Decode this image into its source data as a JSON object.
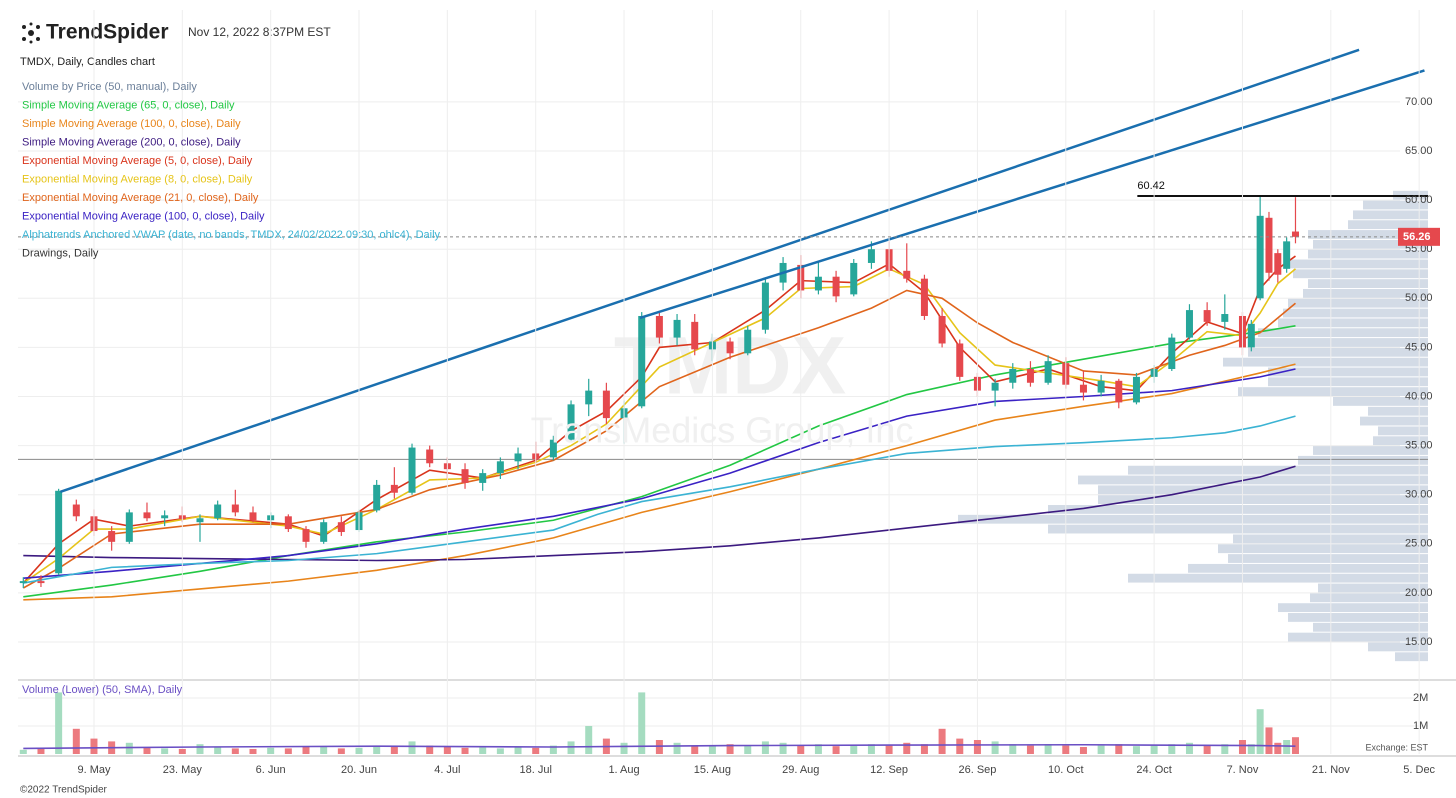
{
  "header": {
    "logo": "TrendSpider",
    "timestamp": "Nov 12, 2022 8:37PM EST",
    "chart_title": "TMDX, Daily, Candles chart"
  },
  "chart_data": {
    "type": "candlestick",
    "watermark": {
      "symbol": "TMDX",
      "company": "TransMedics Group, Inc"
    },
    "up_color": "#26a69a",
    "down_color": "#e5484d",
    "grid": true,
    "xlim": [
      -0.6,
      159
    ],
    "ylim": [
      11.13,
      79.36
    ],
    "xticks": [
      {
        "value": 8,
        "label": "9. May"
      },
      {
        "value": 18,
        "label": "23. May"
      },
      {
        "value": 28,
        "label": "6. Jun"
      },
      {
        "value": 38,
        "label": "20. Jun"
      },
      {
        "value": 48,
        "label": "4. Jul"
      },
      {
        "value": 58,
        "label": "18. Jul"
      },
      {
        "value": 68,
        "label": "1. Aug"
      },
      {
        "value": 78,
        "label": "15. Aug"
      },
      {
        "value": 88,
        "label": "29. Aug"
      },
      {
        "value": 98,
        "label": "12. Sep"
      },
      {
        "value": 108,
        "label": "26. Sep"
      },
      {
        "value": 118,
        "label": "10. Oct"
      },
      {
        "value": 128,
        "label": "24. Oct"
      },
      {
        "value": 138,
        "label": "7. Nov"
      },
      {
        "value": 148,
        "label": "21. Nov"
      },
      {
        "value": 158,
        "label": "5. Dec"
      }
    ],
    "yticks": [
      {
        "value": 15,
        "label": "15.00"
      },
      {
        "value": 20,
        "label": "20.00"
      },
      {
        "value": 25,
        "label": "25.00"
      },
      {
        "value": 30,
        "label": "30.00"
      },
      {
        "value": 35,
        "label": "35.00"
      },
      {
        "value": 40,
        "label": "40.00"
      },
      {
        "value": 45,
        "label": "45.00"
      },
      {
        "value": 50,
        "label": "50.00"
      },
      {
        "value": 55,
        "label": "55.00"
      },
      {
        "value": 60,
        "label": "60.00"
      },
      {
        "value": 65,
        "label": "65.00"
      },
      {
        "value": 70,
        "label": "70.00"
      }
    ],
    "x": [
      0,
      2,
      4,
      6,
      8,
      10,
      12,
      14,
      16,
      18,
      20,
      22,
      24,
      26,
      28,
      30,
      32,
      34,
      36,
      38,
      40,
      42,
      44,
      46,
      48,
      50,
      52,
      54,
      56,
      58,
      60,
      62,
      64,
      66,
      68,
      70,
      72,
      74,
      76,
      78,
      80,
      82,
      84,
      86,
      88,
      90,
      92,
      94,
      96,
      98,
      100,
      102,
      104,
      106,
      108,
      110,
      112,
      114,
      116,
      118,
      120,
      122,
      124,
      126,
      128,
      130,
      132,
      134,
      136,
      138,
      139,
      140,
      141,
      142,
      143,
      144
    ],
    "ohlc": [
      [
        21,
        21.6,
        20.5,
        21.2
      ],
      [
        21.2,
        21.8,
        20.6,
        21
      ],
      [
        22,
        30.6,
        21.8,
        30.4
      ],
      [
        29,
        29.5,
        27.3,
        27.8
      ],
      [
        27.8,
        28.5,
        25.8,
        26.3
      ],
      [
        26.3,
        26.8,
        24.3,
        25.2
      ],
      [
        25.2,
        28.5,
        25,
        28.2
      ],
      [
        28.2,
        29.2,
        27.3,
        27.6
      ],
      [
        27.6,
        28.4,
        26.8,
        27.9
      ],
      [
        27.9,
        28.8,
        27.2,
        27.5
      ],
      [
        27.2,
        28,
        25.2,
        27.6
      ],
      [
        27.6,
        29.4,
        27.4,
        29
      ],
      [
        29,
        30.5,
        27.8,
        28.2
      ],
      [
        28.2,
        28.8,
        27.2,
        27.4
      ],
      [
        27.4,
        28.2,
        26.6,
        27.9
      ],
      [
        27.8,
        28,
        26.2,
        26.5
      ],
      [
        26.5,
        26.8,
        24.6,
        25.2
      ],
      [
        25.2,
        27.5,
        25,
        27.2
      ],
      [
        27.2,
        27.8,
        25.8,
        26.2
      ],
      [
        26.4,
        28.5,
        26.2,
        28.2
      ],
      [
        28.4,
        31.5,
        28.2,
        31
      ],
      [
        31,
        32.8,
        29.6,
        30.2
      ],
      [
        30.2,
        35.2,
        30,
        34.8
      ],
      [
        34.6,
        35,
        32.8,
        33.2
      ],
      [
        33.2,
        33.8,
        31.5,
        32.6
      ],
      [
        32.6,
        33.2,
        30.6,
        31.2
      ],
      [
        31.2,
        32.6,
        30.4,
        32.2
      ],
      [
        32.2,
        33.8,
        31.6,
        33.4
      ],
      [
        33.4,
        34.8,
        32.6,
        34.2
      ],
      [
        34.2,
        35.4,
        33.2,
        33.6
      ],
      [
        33.8,
        36,
        33.5,
        35.6
      ],
      [
        35.6,
        39.6,
        35.4,
        39.2
      ],
      [
        39.2,
        41.8,
        38,
        40.6
      ],
      [
        40.6,
        41.4,
        37.2,
        37.8
      ],
      [
        37.8,
        39.6,
        35.2,
        38.8
      ],
      [
        39,
        48.6,
        38.8,
        48.2
      ],
      [
        48.2,
        48.6,
        45.4,
        46
      ],
      [
        46,
        48.4,
        45.2,
        47.8
      ],
      [
        47.6,
        48.4,
        44.2,
        44.8
      ],
      [
        44.8,
        46.4,
        43.6,
        45.6
      ],
      [
        45.6,
        46,
        43.8,
        44.4
      ],
      [
        44.4,
        47.2,
        44.2,
        46.8
      ],
      [
        46.8,
        52,
        46.4,
        51.6
      ],
      [
        51.6,
        54.2,
        50.8,
        53.6
      ],
      [
        53.4,
        54.4,
        50,
        50.8
      ],
      [
        50.8,
        53.8,
        50.4,
        52.2
      ],
      [
        52.2,
        52.8,
        49.6,
        50.2
      ],
      [
        50.4,
        54,
        50.2,
        53.6
      ],
      [
        53.6,
        55.8,
        53,
        55
      ],
      [
        55,
        55.8,
        52.2,
        52.8
      ],
      [
        52.8,
        55.6,
        51.6,
        52
      ],
      [
        52,
        52.4,
        47.8,
        48.2
      ],
      [
        48.2,
        49,
        45,
        45.4
      ],
      [
        45.4,
        45.8,
        41.6,
        42
      ],
      [
        42,
        42.4,
        40,
        40.6
      ],
      [
        40.6,
        41.8,
        39,
        41.4
      ],
      [
        41.4,
        43.4,
        40.8,
        42.8
      ],
      [
        42.8,
        43.6,
        41,
        41.4
      ],
      [
        41.4,
        44.2,
        41.2,
        43.6
      ],
      [
        43.4,
        44,
        40.8,
        41.2
      ],
      [
        41.2,
        42.6,
        39.6,
        40.4
      ],
      [
        40.4,
        42.2,
        40,
        41.6
      ],
      [
        41.6,
        41.8,
        38.8,
        39.4
      ],
      [
        39.4,
        42.4,
        39.2,
        42
      ],
      [
        42,
        43.2,
        41.4,
        42.8
      ],
      [
        42.8,
        46.4,
        42.6,
        46
      ],
      [
        46,
        49.4,
        45.8,
        48.8
      ],
      [
        48.8,
        49.6,
        47.2,
        47.6
      ],
      [
        47.6,
        50.4,
        46.8,
        48.4
      ],
      [
        48.2,
        48.6,
        44.2,
        45
      ],
      [
        45,
        47.8,
        44.6,
        47.4
      ],
      [
        50,
        60.4,
        49.8,
        58.4
      ],
      [
        58.2,
        58.8,
        51.8,
        52.6
      ],
      [
        54.6,
        55,
        51.6,
        52.4
      ],
      [
        53,
        56.2,
        52.6,
        55.8
      ],
      [
        56.8,
        60.3,
        55.6,
        56.26
      ]
    ],
    "series": [
      {
        "name": "Simple Moving Average (65, 0, close), Daily",
        "color": "#22c744",
        "x": [
          0,
          10,
          20,
          30,
          40,
          50,
          60,
          70,
          80,
          90,
          100,
          110,
          120,
          130,
          140,
          144
        ],
        "values": [
          19.6,
          20.8,
          22.2,
          23.8,
          25.2,
          26.2,
          27.4,
          29.8,
          33,
          37,
          40.2,
          42.2,
          43.8,
          45.4,
          46.6,
          47.2
        ]
      },
      {
        "name": "Simple Moving Average (100, 0, close), Daily",
        "color": "#e8841a",
        "x": [
          0,
          10,
          20,
          30,
          40,
          50,
          60,
          70,
          80,
          90,
          100,
          110,
          120,
          130,
          140,
          144
        ],
        "values": [
          19.3,
          19.6,
          20.4,
          21.2,
          22.3,
          23.8,
          25.6,
          28.2,
          30.3,
          32.6,
          35,
          37.6,
          39,
          40.3,
          42.4,
          43.3
        ]
      },
      {
        "name": "Simple Moving Average (200, 0, close), Daily",
        "color": "#3c1a80",
        "x": [
          0,
          10,
          20,
          30,
          40,
          50,
          60,
          70,
          80,
          90,
          100,
          110,
          120,
          130,
          140,
          144
        ],
        "values": [
          23.8,
          23.6,
          23.5,
          23.4,
          23.3,
          23.4,
          23.8,
          24.2,
          24.8,
          25.6,
          26.6,
          27.6,
          28.6,
          30,
          31.8,
          32.9
        ]
      },
      {
        "name": "Exponential Moving Average (5, 0, close), Daily",
        "color": "#d9341c",
        "x": [
          0,
          4,
          8,
          12,
          20,
          30,
          34,
          40,
          46,
          52,
          58,
          62,
          66,
          70,
          72,
          78,
          84,
          88,
          94,
          98,
          102,
          106,
          110,
          116,
          122,
          126,
          130,
          134,
          138,
          140,
          142,
          144
        ],
        "values": [
          21,
          25,
          27.5,
          26.8,
          27.8,
          27,
          25.8,
          29.5,
          32.5,
          31.7,
          33.5,
          36.5,
          38.5,
          42,
          45,
          45.5,
          48.8,
          51.8,
          51.6,
          53.5,
          50.6,
          45,
          41.5,
          42.8,
          41,
          40.6,
          44.4,
          47.6,
          46.4,
          51,
          53,
          54.3
        ]
      },
      {
        "name": "Exponential Moving Average (8, 0, close), Daily",
        "color": "#e6c419",
        "x": [
          0,
          4,
          8,
          12,
          20,
          30,
          34,
          40,
          46,
          52,
          58,
          62,
          66,
          72,
          78,
          84,
          88,
          94,
          98,
          102,
          106,
          110,
          116,
          122,
          126,
          130,
          134,
          138,
          140,
          142,
          144
        ],
        "values": [
          21,
          23.5,
          26.5,
          26.5,
          27.8,
          26.8,
          26,
          28.5,
          31.5,
          31.7,
          33.3,
          35,
          37.2,
          43,
          45.5,
          48,
          51,
          51.2,
          53,
          51.4,
          46.5,
          43.2,
          42.4,
          41.6,
          41,
          43.6,
          46.6,
          46.2,
          48.5,
          51.5,
          53
        ]
      },
      {
        "name": "Exponential Moving Average (21, 0, close), Daily",
        "color": "#e0651c",
        "x": [
          0,
          4,
          10,
          20,
          30,
          40,
          46,
          54,
          60,
          66,
          72,
          80,
          90,
          96,
          100,
          104,
          108,
          112,
          120,
          126,
          132,
          136,
          140,
          144
        ],
        "values": [
          20.5,
          22.5,
          26,
          27,
          27,
          28.5,
          30.5,
          32,
          33.5,
          36.5,
          41,
          44,
          47,
          49,
          50.8,
          50,
          47.5,
          45.5,
          42.6,
          42.2,
          44.2,
          45.2,
          46.5,
          49.5
        ]
      },
      {
        "name": "Exponential Moving Average (100, 0, close), Daily",
        "color": "#3a22c4",
        "x": [
          0,
          10,
          20,
          30,
          40,
          50,
          60,
          70,
          80,
          90,
          100,
          110,
          120,
          130,
          140,
          144
        ],
        "values": [
          21.5,
          22.2,
          23,
          23.8,
          25,
          26.5,
          27.8,
          29.6,
          32.2,
          35.3,
          38,
          39.5,
          40,
          40.6,
          42,
          42.8
        ]
      },
      {
        "name": "Alphatrends Anchored VWAP (date, no bands, TMDX, 24/02/2022 09:30, ohlc4), Daily",
        "color": "#3bb3d3",
        "x": [
          0,
          10,
          20,
          30,
          40,
          50,
          60,
          65,
          70,
          80,
          90,
          100,
          110,
          120,
          130,
          136,
          140,
          144
        ],
        "values": [
          21,
          22.6,
          23,
          23.3,
          24,
          25.2,
          26.4,
          28,
          29.3,
          30.8,
          32.6,
          34.2,
          34.9,
          35.3,
          35.8,
          36.3,
          37,
          38
        ]
      }
    ],
    "volume_by_price": {
      "name": "Volume by Price (50, manual), Daily",
      "color": "#d3dbe6",
      "label_color": "#6b7f99",
      "bins": [
        13,
        14,
        15,
        16,
        17,
        18,
        19,
        20,
        21,
        22,
        23,
        24,
        25,
        26,
        27,
        28,
        29,
        30,
        31,
        32,
        33,
        34,
        35,
        36,
        37,
        38,
        39,
        40,
        41,
        42,
        43,
        44,
        45,
        46,
        47,
        48,
        49,
        50,
        51,
        52,
        53,
        54,
        55,
        56,
        57,
        58,
        59,
        60,
        61
      ],
      "values": [
        33,
        60,
        140,
        115,
        140,
        150,
        118,
        110,
        300,
        240,
        200,
        210,
        195,
        380,
        470,
        380,
        330,
        330,
        350,
        300,
        130,
        115,
        55,
        50,
        68,
        60,
        95,
        190,
        160,
        160,
        205,
        180,
        180,
        170,
        150,
        145,
        140,
        125,
        120,
        135,
        140,
        120,
        115,
        120,
        80,
        75,
        65,
        35
      ]
    },
    "drawings": {
      "name": "Drawings, Daily",
      "color": "#1a6faf",
      "label_color": "#333333",
      "trendlines": [
        {
          "x": [
            4.2,
            151.2
          ],
          "y": [
            30.3,
            75.3
          ]
        },
        {
          "x": [
            69.8,
            158.6
          ],
          "y": [
            48,
            73.2
          ]
        }
      ],
      "level": {
        "value": 60.42,
        "x": 126.1,
        "color": "#111111"
      },
      "support": {
        "value": 33.6,
        "color": "#8a8a8a"
      }
    },
    "last_price": 56.26,
    "last_price_color": "#e5484d",
    "volume": {
      "title": "Volume (Lower) (50, SMA), Daily",
      "title_color": "#6a4fc4",
      "up_color": "#a5dcc0",
      "down_color": "#ec7a7f",
      "ylim": [
        0,
        2500000
      ],
      "yticks": [
        {
          "value": 1000000,
          "label": "1M"
        },
        {
          "value": 2000000,
          "label": "2M"
        }
      ],
      "values": [
        150000,
        180000,
        2200000,
        900000,
        550000,
        450000,
        400000,
        250000,
        200000,
        180000,
        350000,
        250000,
        200000,
        180000,
        220000,
        200000,
        250000,
        280000,
        200000,
        220000,
        300000,
        280000,
        450000,
        300000,
        250000,
        220000,
        230000,
        200000,
        250000,
        220000,
        300000,
        450000,
        1000000,
        550000,
        400000,
        2200000,
        500000,
        400000,
        300000,
        280000,
        350000,
        300000,
        450000,
        400000,
        300000,
        350000,
        280000,
        300000,
        350000,
        300000,
        400000,
        350000,
        900000,
        550000,
        500000,
        450000,
        350000,
        300000,
        350000,
        300000,
        250000,
        300000,
        350000,
        280000,
        300000,
        350000,
        400000,
        300000,
        350000,
        500000,
        350000,
        1600000,
        950000,
        400000,
        500000,
        600000
      ],
      "sma": {
        "color": "#6a4fc4",
        "x": [
          0,
          20,
          40,
          60,
          80,
          100,
          120,
          140,
          144
        ],
        "values": [
          200000,
          250000,
          280000,
          250000,
          300000,
          320000,
          330000,
          300000,
          280000
        ]
      },
      "exchange": "Exchange: EST"
    }
  },
  "footer": "©2022 TrendSpider"
}
